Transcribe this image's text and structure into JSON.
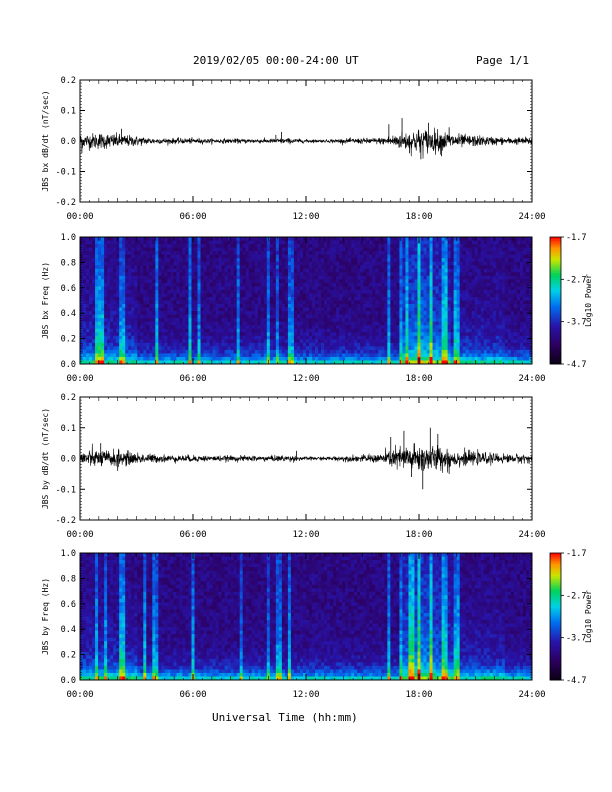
{
  "header": {
    "date_range": "2019/02/05  00:00-24:00 UT",
    "page": "Page 1/1"
  },
  "footer": {
    "x_axis_title": "Universal Time (hh:mm)"
  },
  "colors": {
    "trace": "#000000",
    "background": "#ffffff",
    "spectrogram_low": "#1a0033",
    "spectrogram_high": "#ff0000"
  },
  "colorbar": {
    "label": "Log10 Power",
    "ticks": [
      "-1.7",
      "-2.7",
      "-3.7",
      "-4.7"
    ],
    "range": [
      -4.7,
      -1.7
    ],
    "colormap": "rainbow: black-purple-blue-cyan-green-yellow-orange-red"
  },
  "chart_data": [
    {
      "type": "line",
      "panel": "jbs-bx-waveform",
      "ylabel": "JBS bx dB/dt (nT/sec)",
      "x_ticks": [
        "00:00",
        "06:00",
        "12:00",
        "18:00",
        "24:00"
      ],
      "y_ticks": [
        "0.2",
        "0.1",
        "0.0",
        "-0.1",
        "-0.2"
      ],
      "xlim": [
        0,
        24
      ],
      "ylim": [
        -0.2,
        0.2
      ],
      "x_unit": "hours UT",
      "envelope": {
        "x": [
          0,
          1,
          2,
          3,
          4,
          5,
          6,
          7,
          8,
          9,
          10,
          11,
          12,
          13,
          14,
          15,
          16,
          17,
          18,
          19,
          20,
          21,
          22,
          23,
          24
        ],
        "amplitude": [
          0.025,
          0.03,
          0.025,
          0.018,
          0.01,
          0.01,
          0.01,
          0.008,
          0.008,
          0.008,
          0.008,
          0.01,
          0.006,
          0.005,
          0.008,
          0.01,
          0.012,
          0.03,
          0.045,
          0.04,
          0.025,
          0.02,
          0.015,
          0.012,
          0.015
        ]
      },
      "spikes": [
        {
          "x": 0.1,
          "y": -0.04
        },
        {
          "x": 2.2,
          "y": 0.04
        },
        {
          "x": 10.4,
          "y": 0.02
        },
        {
          "x": 10.7,
          "y": 0.03
        },
        {
          "x": 16.4,
          "y": 0.055
        },
        {
          "x": 17.1,
          "y": 0.075
        },
        {
          "x": 17.5,
          "y": -0.04
        },
        {
          "x": 18.1,
          "y": -0.06
        },
        {
          "x": 18.5,
          "y": 0.06
        },
        {
          "x": 19.2,
          "y": -0.05
        },
        {
          "x": 19.6,
          "y": 0.045
        }
      ]
    },
    {
      "type": "heatmap",
      "panel": "jbs-bx-spectrogram",
      "ylabel": "JBS bx Freq (Hz)",
      "x_ticks": [
        "00:00",
        "06:00",
        "12:00",
        "18:00",
        "24:00"
      ],
      "y_ticks": [
        "1.0",
        "0.8",
        "0.6",
        "0.4",
        "0.2",
        "0.0"
      ],
      "xlim": [
        0,
        24
      ],
      "ylim": [
        0,
        1.0
      ],
      "vertical_bands_hours": [
        0.9,
        1.1,
        2.2,
        4.1,
        5.8,
        6.3,
        8.4,
        10.0,
        10.5,
        11.2,
        16.4,
        17.0,
        17.4,
        18.0,
        18.6,
        19.4,
        20.0
      ],
      "high_activity_hours": [
        17.2,
        19.6
      ]
    },
    {
      "type": "line",
      "panel": "jbs-by-waveform",
      "ylabel": "JBS by dB/dt (nT/sec)",
      "x_ticks": [
        "00:00",
        "06:00",
        "12:00",
        "18:00",
        "24:00"
      ],
      "y_ticks": [
        "0.2",
        "0.1",
        "0.0",
        "-0.1",
        "-0.2"
      ],
      "xlim": [
        0,
        24
      ],
      "ylim": [
        -0.2,
        0.2
      ],
      "x_unit": "hours UT",
      "envelope": {
        "x": [
          0,
          1,
          2,
          3,
          4,
          5,
          6,
          7,
          8,
          9,
          10,
          11,
          12,
          13,
          14,
          15,
          16,
          17,
          18,
          19,
          20,
          21,
          22,
          23,
          24
        ],
        "amplitude": [
          0.03,
          0.03,
          0.03,
          0.02,
          0.015,
          0.012,
          0.012,
          0.01,
          0.01,
          0.01,
          0.01,
          0.012,
          0.006,
          0.006,
          0.01,
          0.012,
          0.018,
          0.045,
          0.05,
          0.045,
          0.03,
          0.022,
          0.018,
          0.015,
          0.016
        ]
      },
      "spikes": [
        {
          "x": 1.1,
          "y": 0.05
        },
        {
          "x": 2.0,
          "y": -0.04
        },
        {
          "x": 11.5,
          "y": 0.025
        },
        {
          "x": 16.5,
          "y": 0.07
        },
        {
          "x": 17.2,
          "y": 0.09
        },
        {
          "x": 17.6,
          "y": -0.06
        },
        {
          "x": 18.2,
          "y": -0.1
        },
        {
          "x": 18.6,
          "y": 0.1
        },
        {
          "x": 19.0,
          "y": 0.08
        },
        {
          "x": 19.6,
          "y": -0.05
        }
      ]
    },
    {
      "type": "heatmap",
      "panel": "jbs-by-spectrogram",
      "ylabel": "JBS by Freq (Hz)",
      "x_ticks": [
        "00:00",
        "06:00",
        "12:00",
        "18:00",
        "24:00"
      ],
      "y_ticks": [
        "1.0",
        "0.8",
        "0.6",
        "0.4",
        "0.2",
        "0.0"
      ],
      "xlim": [
        0,
        24
      ],
      "ylim": [
        0,
        1.0
      ],
      "vertical_bands_hours": [
        0.9,
        1.4,
        2.2,
        3.4,
        4.0,
        6.0,
        8.6,
        10.0,
        10.6,
        11.1,
        16.4,
        17.0,
        17.6,
        18.0,
        18.6,
        19.4,
        20.0
      ],
      "high_activity_hours": [
        17.2,
        19.8
      ]
    }
  ]
}
